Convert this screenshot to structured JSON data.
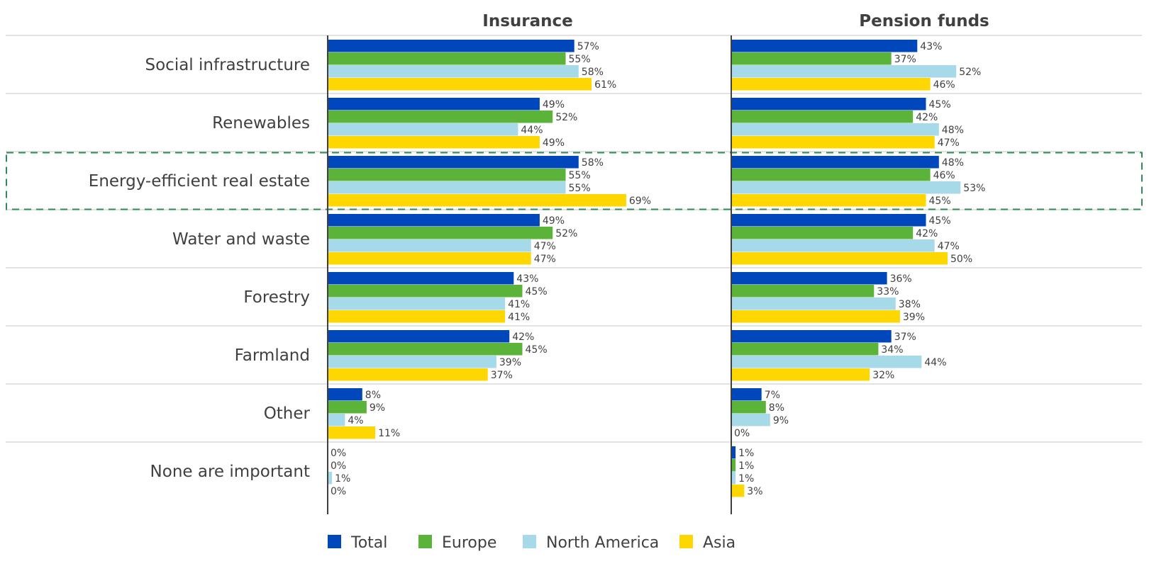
{
  "chart_data": {
    "type": "bar",
    "orientation": "horizontal",
    "panels": [
      {
        "title": "Insurance",
        "series": [
          {
            "name": "Total",
            "values": [
              57,
              49,
              58,
              49,
              43,
              42,
              8,
              0
            ]
          },
          {
            "name": "Europe",
            "values": [
              55,
              52,
              55,
              52,
              45,
              45,
              9,
              0
            ]
          },
          {
            "name": "North America",
            "values": [
              58,
              44,
              55,
              47,
              41,
              39,
              4,
              1
            ]
          },
          {
            "name": "Asia",
            "values": [
              61,
              49,
              69,
              47,
              41,
              37,
              11,
              0
            ]
          }
        ]
      },
      {
        "title": "Pension funds",
        "series": [
          {
            "name": "Total",
            "values": [
              43,
              45,
              48,
              45,
              36,
              37,
              7,
              1
            ]
          },
          {
            "name": "Europe",
            "values": [
              37,
              42,
              46,
              42,
              33,
              34,
              8,
              1
            ]
          },
          {
            "name": "North America",
            "values": [
              52,
              48,
              53,
              47,
              38,
              44,
              9,
              1
            ]
          },
          {
            "name": "Asia",
            "values": [
              46,
              47,
              45,
              50,
              39,
              32,
              0,
              3
            ]
          }
        ]
      }
    ],
    "categories": [
      "Social infrastructure",
      "Renewables",
      "Energy-efficient real estate",
      "Water and waste",
      "Forestry",
      "Farmland",
      "Other",
      "None are important"
    ],
    "highlighted_category": "Energy-efficient real estate",
    "value_suffix": "%",
    "legend": {
      "position": "bottom",
      "entries": [
        "Total",
        "Europe",
        "North America",
        "Asia"
      ]
    },
    "colors": {
      "Total": "#0047BB",
      "Europe": "#5BB33A",
      "North America": "#A7DAE8",
      "Asia": "#FFD700",
      "highlight": "#2E8B57",
      "divider": "#D9D9D9",
      "axis": "#404040"
    },
    "grid": false
  }
}
